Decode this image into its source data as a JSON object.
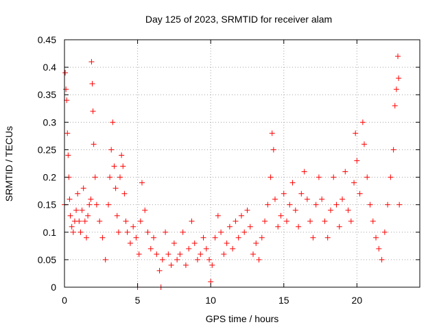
{
  "chart_data": {
    "type": "scatter",
    "title": "Day 125 of 2023, SRMTID for receiver alam",
    "xlabel": "GPS time / hours",
    "ylabel": "SRMTID / TECUs",
    "xlim": [
      0,
      24.3
    ],
    "ylim": [
      0,
      0.45
    ],
    "xticks": [
      0,
      5,
      10,
      15,
      20
    ],
    "yticks": [
      0,
      0.05,
      0.1,
      0.15,
      0.2,
      0.25,
      0.3,
      0.35,
      0.4,
      0.45
    ],
    "xtick_labels": [
      "0",
      "5",
      "10",
      "15",
      "20"
    ],
    "ytick_labels": [
      "0",
      "0.05",
      "0.1",
      "0.15",
      "0.2",
      "0.25",
      "0.3",
      "0.35",
      "0.4",
      "0.45"
    ],
    "grid": true,
    "marker": "+",
    "color": "#ff0000",
    "series": [
      {
        "name": "alam",
        "points": [
          [
            0.0,
            0.15
          ],
          [
            0.05,
            0.39
          ],
          [
            0.1,
            0.36
          ],
          [
            0.15,
            0.34
          ],
          [
            0.2,
            0.28
          ],
          [
            0.25,
            0.24
          ],
          [
            0.3,
            0.2
          ],
          [
            0.35,
            0.16
          ],
          [
            0.4,
            0.13
          ],
          [
            0.5,
            0.11
          ],
          [
            0.6,
            0.1
          ],
          [
            0.7,
            0.12
          ],
          [
            0.8,
            0.14
          ],
          [
            0.9,
            0.17
          ],
          [
            1.0,
            0.12
          ],
          [
            1.1,
            0.1
          ],
          [
            1.2,
            0.14
          ],
          [
            1.3,
            0.18
          ],
          [
            1.4,
            0.12
          ],
          [
            1.5,
            0.09
          ],
          [
            1.6,
            0.13
          ],
          [
            1.7,
            0.15
          ],
          [
            1.8,
            0.16
          ],
          [
            1.85,
            0.41
          ],
          [
            1.9,
            0.37
          ],
          [
            1.95,
            0.32
          ],
          [
            2.0,
            0.26
          ],
          [
            2.1,
            0.2
          ],
          [
            2.2,
            0.15
          ],
          [
            2.4,
            0.12
          ],
          [
            2.6,
            0.09
          ],
          [
            2.8,
            0.05
          ],
          [
            3.0,
            0.15
          ],
          [
            3.1,
            0.2
          ],
          [
            3.2,
            0.25
          ],
          [
            3.3,
            0.3
          ],
          [
            3.4,
            0.22
          ],
          [
            3.5,
            0.18
          ],
          [
            3.6,
            0.13
          ],
          [
            3.7,
            0.1
          ],
          [
            3.8,
            0.2
          ],
          [
            3.9,
            0.24
          ],
          [
            4.0,
            0.22
          ],
          [
            4.1,
            0.17
          ],
          [
            4.2,
            0.12
          ],
          [
            4.3,
            0.1
          ],
          [
            4.5,
            0.08
          ],
          [
            4.7,
            0.11
          ],
          [
            4.9,
            0.09
          ],
          [
            5.0,
            0.0
          ],
          [
            5.1,
            0.06
          ],
          [
            5.2,
            0.12
          ],
          [
            5.3,
            0.19
          ],
          [
            5.5,
            0.14
          ],
          [
            5.7,
            0.1
          ],
          [
            5.9,
            0.07
          ],
          [
            6.1,
            0.09
          ],
          [
            6.3,
            0.06
          ],
          [
            6.5,
            0.03
          ],
          [
            6.6,
            0.0
          ],
          [
            6.7,
            0.05
          ],
          [
            6.9,
            0.1
          ],
          [
            7.1,
            0.06
          ],
          [
            7.3,
            0.04
          ],
          [
            7.5,
            0.08
          ],
          [
            7.7,
            0.05
          ],
          [
            7.9,
            0.06
          ],
          [
            8.1,
            0.1
          ],
          [
            8.3,
            0.04
          ],
          [
            8.5,
            0.07
          ],
          [
            8.7,
            0.12
          ],
          [
            8.9,
            0.08
          ],
          [
            9.1,
            0.05
          ],
          [
            9.3,
            0.06
          ],
          [
            9.5,
            0.09
          ],
          [
            9.7,
            0.07
          ],
          [
            9.9,
            0.05
          ],
          [
            10.0,
            0.01
          ],
          [
            10.1,
            0.04
          ],
          [
            10.3,
            0.09
          ],
          [
            10.5,
            0.13
          ],
          [
            10.7,
            0.1
          ],
          [
            10.9,
            0.06
          ],
          [
            11.1,
            0.08
          ],
          [
            11.3,
            0.11
          ],
          [
            11.5,
            0.07
          ],
          [
            11.7,
            0.12
          ],
          [
            11.9,
            0.09
          ],
          [
            12.1,
            0.13
          ],
          [
            12.3,
            0.1
          ],
          [
            12.5,
            0.14
          ],
          [
            12.7,
            0.11
          ],
          [
            12.9,
            0.06
          ],
          [
            13.1,
            0.08
          ],
          [
            13.3,
            0.05
          ],
          [
            13.5,
            0.09
          ],
          [
            13.7,
            0.12
          ],
          [
            13.9,
            0.15
          ],
          [
            14.1,
            0.2
          ],
          [
            14.2,
            0.28
          ],
          [
            14.3,
            0.25
          ],
          [
            14.4,
            0.16
          ],
          [
            14.6,
            0.11
          ],
          [
            14.8,
            0.13
          ],
          [
            15.0,
            0.17
          ],
          [
            15.2,
            0.12
          ],
          [
            15.4,
            0.15
          ],
          [
            15.6,
            0.19
          ],
          [
            15.8,
            0.14
          ],
          [
            16.0,
            0.11
          ],
          [
            16.2,
            0.17
          ],
          [
            16.4,
            0.21
          ],
          [
            16.6,
            0.16
          ],
          [
            16.8,
            0.12
          ],
          [
            17.0,
            0.09
          ],
          [
            17.2,
            0.15
          ],
          [
            17.4,
            0.2
          ],
          [
            17.6,
            0.16
          ],
          [
            17.8,
            0.12
          ],
          [
            18.0,
            0.09
          ],
          [
            18.2,
            0.14
          ],
          [
            18.4,
            0.2
          ],
          [
            18.6,
            0.15
          ],
          [
            18.8,
            0.11
          ],
          [
            19.0,
            0.16
          ],
          [
            19.2,
            0.21
          ],
          [
            19.4,
            0.14
          ],
          [
            19.6,
            0.12
          ],
          [
            19.8,
            0.19
          ],
          [
            19.9,
            0.28
          ],
          [
            20.0,
            0.23
          ],
          [
            20.2,
            0.17
          ],
          [
            20.4,
            0.3
          ],
          [
            20.5,
            0.26
          ],
          [
            20.7,
            0.2
          ],
          [
            20.9,
            0.15
          ],
          [
            21.1,
            0.12
          ],
          [
            21.3,
            0.09
          ],
          [
            21.5,
            0.07
          ],
          [
            21.7,
            0.05
          ],
          [
            21.9,
            0.1
          ],
          [
            22.1,
            0.15
          ],
          [
            22.3,
            0.2
          ],
          [
            22.5,
            0.25
          ],
          [
            22.6,
            0.33
          ],
          [
            22.7,
            0.36
          ],
          [
            22.8,
            0.42
          ],
          [
            22.85,
            0.38
          ],
          [
            22.9,
            0.15
          ]
        ]
      }
    ]
  }
}
